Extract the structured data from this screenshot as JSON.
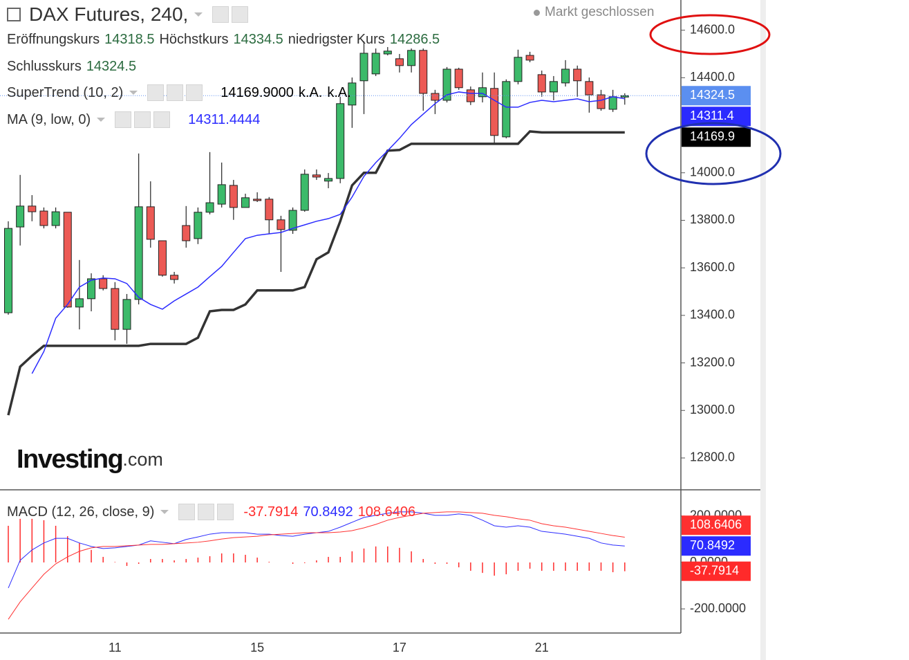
{
  "header": {
    "title": "DAX Futures, 240,",
    "status": "Markt geschlossen",
    "logo_main": "Investing",
    "logo_suffix": ".com"
  },
  "chart_data": [
    {
      "type": "candlestick",
      "categories": [
        null,
        null,
        null,
        null,
        null,
        null,
        null,
        null,
        null,
        "11",
        null,
        null,
        null,
        null,
        null,
        null,
        null,
        null,
        null,
        null,
        null,
        "15",
        null,
        null,
        null,
        null,
        null,
        null,
        null,
        null,
        null,
        null,
        null,
        "17",
        null,
        null,
        null,
        null,
        null,
        null,
        null,
        null,
        null,
        null,
        null,
        "21",
        null,
        null,
        null,
        null,
        null,
        null,
        null
      ],
      "ohlc_labels": {
        "open": "Eröffnungskurs",
        "high": "Höchstkurs",
        "low": "niedrigster Kurs",
        "close": "Schlusskurs"
      },
      "open": [
        13411,
        13772,
        13860,
        13839,
        13778,
        13834,
        13435,
        13470,
        13554,
        13513,
        13341,
        13467,
        13857,
        13714,
        13569,
        13778,
        13723,
        13834,
        13868,
        13947,
        13854,
        13889,
        13889,
        13802,
        13758,
        13842,
        13991,
        13965,
        13976,
        14285,
        14387,
        14416,
        14500,
        14480,
        14451,
        14515,
        14334,
        14305,
        14436,
        14349,
        14320,
        14355,
        14151,
        14384,
        14494,
        14413,
        14340,
        14378,
        14436,
        14384,
        14328,
        14267,
        14318.5
      ],
      "high": [
        13796,
        13991,
        13906,
        13854,
        13854,
        13834,
        13633,
        13577,
        13569,
        13540,
        13490,
        14081,
        13964,
        13714,
        13583,
        13860,
        13854,
        14087,
        14043,
        13970,
        13912,
        13918,
        13898,
        13819,
        13854,
        14014,
        14014,
        13999,
        14320,
        14401,
        14553,
        14523,
        14529,
        14500,
        14523,
        14523,
        14349,
        14445,
        14442,
        14363,
        14422,
        14422,
        14393,
        14518,
        14509,
        14430,
        14407,
        14474,
        14451,
        14401,
        14349,
        14349,
        14334.5
      ],
      "low": [
        13403,
        13694,
        13796,
        13766,
        13766,
        13432,
        13341,
        13417,
        13505,
        13295,
        13280,
        13446,
        13685,
        13563,
        13534,
        13685,
        13700,
        13825,
        13854,
        13802,
        13854,
        13877,
        13743,
        13583,
        13743,
        13836,
        13970,
        13935,
        13956,
        14189,
        14247,
        14407,
        14494,
        14422,
        14422,
        14261,
        14247,
        14296,
        14349,
        14285,
        14296,
        14122,
        14145,
        14372,
        14465,
        14320,
        14305,
        14363,
        14320,
        14253,
        14261,
        14256,
        14286.5
      ],
      "close": [
        13766,
        13860,
        13836,
        13778,
        13836,
        13435,
        13470,
        13554,
        13513,
        13341,
        13467,
        13857,
        13720,
        13569,
        13551,
        13714,
        13834,
        13874,
        13950,
        13854,
        13895,
        13883,
        13802,
        13761,
        13842,
        13994,
        13982,
        13976,
        14291,
        14378,
        14503,
        14503,
        14512,
        14451,
        14515,
        14334,
        14305,
        14436,
        14358,
        14299,
        14358,
        14157,
        14384,
        14486,
        14474,
        14340,
        14384,
        14436,
        14387,
        14328,
        14270,
        14320,
        14324.5
      ],
      "up_color": "#3cba6a",
      "down_color": "#ec5a55",
      "last_price_color": "#5b8ff0",
      "series": [
        {
          "name": "SuperTrend (10, 2)",
          "color": "#333333",
          "header_label": "14169.9000",
          "header_extra": [
            "k.A.",
            "k.A."
          ],
          "values": [
            12980,
            13184,
            13230,
            13272,
            13272,
            13272,
            13272,
            13272,
            13272,
            13272,
            13272,
            13272,
            13280,
            13280,
            13280,
            13280,
            13306,
            13417,
            13423,
            13423,
            13446,
            13505,
            13505,
            13505,
            13505,
            13519,
            13636,
            13665,
            13796,
            13947,
            14000,
            14000,
            14093,
            14096,
            14122,
            14122,
            14122,
            14122,
            14122,
            14122,
            14122,
            14122,
            14122,
            14122,
            14174,
            14169.9,
            14169.9,
            14169.9,
            14169.9,
            14169.9,
            14169.9,
            14169.9,
            14169.9
          ]
        },
        {
          "name": "MA (9, low, 0)",
          "color": "#2b2bff",
          "price_label": "14311.4",
          "values": [
            null,
            null,
            13155,
            13248,
            13388,
            13446,
            13519,
            13548,
            13557,
            13554,
            13534,
            13476,
            13446,
            13426,
            13461,
            13490,
            13519,
            13563,
            13606,
            13665,
            13723,
            13737,
            13743,
            13749,
            13766,
            13781,
            13796,
            13807,
            13825,
            13898,
            13985,
            14043,
            14093,
            14145,
            14203,
            14247,
            14291,
            14328,
            14340,
            14334,
            14334,
            14305,
            14276,
            14276,
            14296,
            14305,
            14299,
            14305,
            14311,
            14299,
            14305,
            14320,
            14311.4444
          ]
        }
      ],
      "ylim": [
        12666,
        14727
      ],
      "yticks": [
        {
          "value": 12800,
          "label": "12800.0"
        },
        {
          "value": 13000,
          "label": "13000.0"
        },
        {
          "value": 13200,
          "label": "13200.0"
        },
        {
          "value": 13400,
          "label": "13400.0"
        },
        {
          "value": 13600,
          "label": "13600.0"
        },
        {
          "value": 13800,
          "label": "13800.0"
        },
        {
          "value": 14000,
          "label": "14000.0"
        },
        {
          "value": 14400,
          "label": "14400.0"
        },
        {
          "value": 14600,
          "label": "14600.0"
        }
      ]
    },
    {
      "type": "macd",
      "title": "MACD (12, 26, close, 9)",
      "histogram": {
        "color": "#ff2a2a",
        "values": [
          158,
          188,
          188,
          182,
          158,
          113,
          84,
          54,
          24,
          2,
          -15,
          -6,
          15,
          15,
          9,
          15,
          21,
          27,
          39,
          39,
          33,
          21,
          3,
          0,
          -6,
          -3,
          9,
          24,
          24,
          48,
          60,
          69,
          69,
          63,
          48,
          15,
          -6,
          -6,
          -21,
          -36,
          -45,
          -57,
          -51,
          -36,
          -27,
          -36,
          -36,
          -36,
          -36,
          -36,
          -36,
          -42,
          -37.7914
        ]
      },
      "series": [
        {
          "color": "#2b2bff",
          "values": [
            -110,
            9,
            54,
            84,
            104,
            104,
            84,
            69,
            60,
            63,
            69,
            75,
            93,
            87,
            81,
            99,
            110,
            122,
            128,
            128,
            128,
            122,
            122,
            116,
            113,
            122,
            128,
            134,
            152,
            173,
            194,
            203,
            212,
            218,
            218,
            212,
            203,
            203,
            209,
            203,
            182,
            158,
            152,
            158,
            152,
            134,
            128,
            122,
            113,
            104,
            84,
            75,
            70.8492
          ]
        },
        {
          "color": "#ff3030",
          "values": [
            -245,
            -170,
            -110,
            -51,
            -6,
            24,
            48,
            63,
            69,
            69,
            72,
            75,
            78,
            78,
            81,
            84,
            87,
            93,
            101,
            107,
            110,
            113,
            119,
            122,
            125,
            128,
            128,
            128,
            131,
            137,
            149,
            164,
            182,
            194,
            203,
            212,
            215,
            218,
            218,
            215,
            212,
            203,
            197,
            188,
            182,
            167,
            158,
            152,
            143,
            134,
            125,
            116,
            108.6406
          ]
        }
      ],
      "ylim": [
        -304,
        307
      ],
      "yticks": [
        {
          "value": 200,
          "label": "200.0000"
        },
        {
          "value": 0,
          "label": "0.0000"
        },
        {
          "value": -200,
          "label": "-200.0000"
        }
      ]
    }
  ]
}
